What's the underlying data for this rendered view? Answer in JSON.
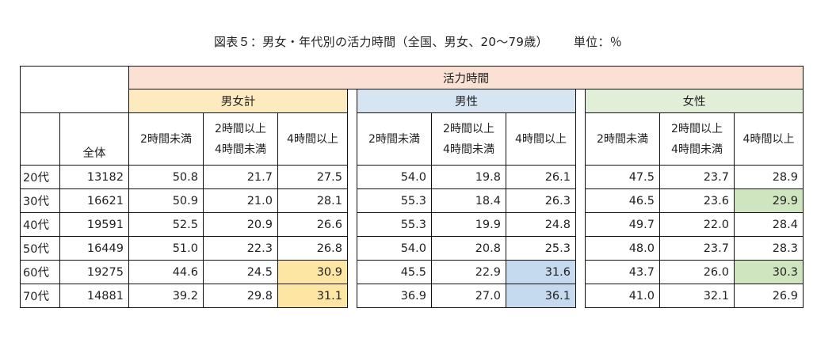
{
  "title": "図表５：男女・年代別の活力時間（全国、男女、20〜79歳）",
  "unit": "単位：％",
  "header": {
    "top": "活力時間",
    "groups": [
      "男女計",
      "男性",
      "女性"
    ],
    "total_label": "全体",
    "sub": [
      {
        "line1": "2時間未満",
        "line2": ""
      },
      {
        "line1": "2時間以上",
        "line2": "4時間未満"
      },
      {
        "line1": "4時間以上",
        "line2": ""
      }
    ]
  },
  "rows": [
    {
      "age": "20代",
      "total": "13182",
      "all": [
        "50.8",
        "21.7",
        "27.5"
      ],
      "male": [
        "54.0",
        "19.8",
        "26.1"
      ],
      "female": [
        "47.5",
        "23.7",
        "28.9"
      ]
    },
    {
      "age": "30代",
      "total": "16621",
      "all": [
        "50.9",
        "21.0",
        "28.1"
      ],
      "male": [
        "55.3",
        "18.4",
        "26.3"
      ],
      "female": [
        "46.5",
        "23.6",
        "29.9"
      ]
    },
    {
      "age": "40代",
      "total": "19591",
      "all": [
        "52.5",
        "20.9",
        "26.6"
      ],
      "male": [
        "55.3",
        "19.9",
        "24.8"
      ],
      "female": [
        "49.7",
        "22.0",
        "28.4"
      ]
    },
    {
      "age": "50代",
      "total": "16449",
      "all": [
        "51.0",
        "22.3",
        "26.8"
      ],
      "male": [
        "54.0",
        "20.8",
        "25.3"
      ],
      "female": [
        "48.0",
        "23.7",
        "28.3"
      ]
    },
    {
      "age": "60代",
      "total": "19275",
      "all": [
        "44.6",
        "24.5",
        "30.9"
      ],
      "male": [
        "45.5",
        "22.9",
        "31.6"
      ],
      "female": [
        "43.7",
        "26.0",
        "30.3"
      ]
    },
    {
      "age": "70代",
      "total": "14881",
      "all": [
        "39.2",
        "29.8",
        "31.1"
      ],
      "male": [
        "36.9",
        "27.0",
        "36.1"
      ],
      "female": [
        "41.0",
        "32.1",
        "26.9"
      ]
    }
  ],
  "colors": {
    "header_top": "#fbe0d4",
    "header_all": "#fdebbf",
    "header_male": "#d7e5f3",
    "header_female": "#e1eed8",
    "highlight_all": "#fde6a3",
    "highlight_male": "#c5daef",
    "highlight_female": "#cfe5bf"
  }
}
